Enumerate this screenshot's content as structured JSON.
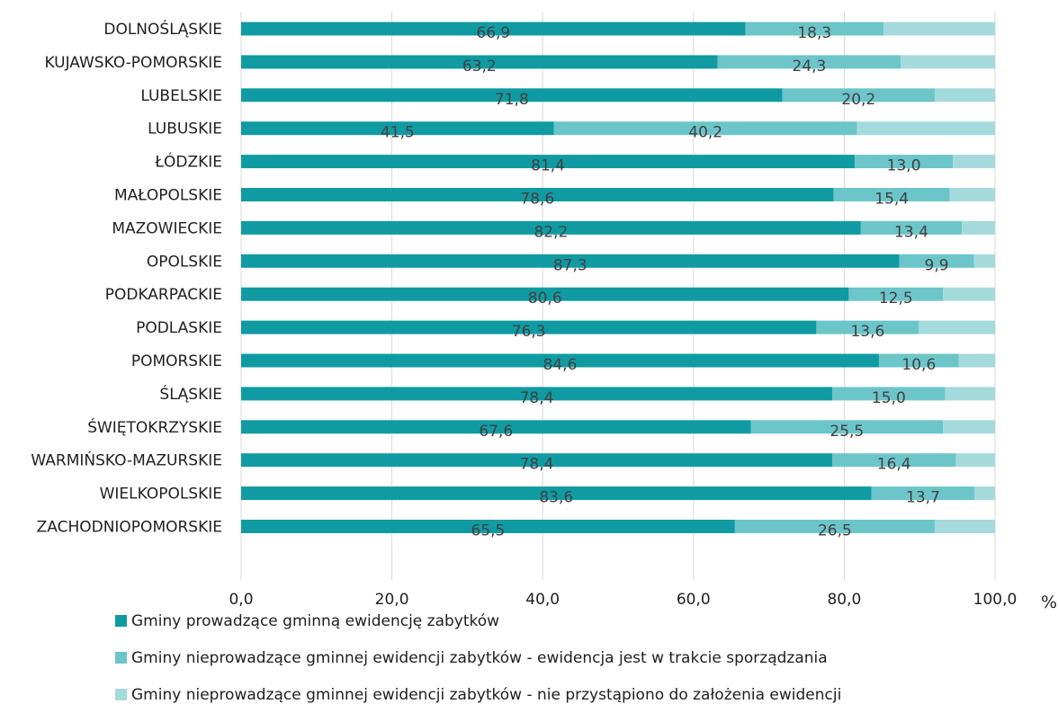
{
  "chart_data": {
    "type": "bar",
    "orientation": "horizontal",
    "stacked": true,
    "categories": [
      "DOLNOŚLĄSKIE",
      "KUJAWSKO-POMORSKIE",
      "LUBELSKIE",
      "LUBUSKIE",
      "ŁÓDZKIE",
      "MAŁOPOLSKIE",
      "MAZOWIECKIE",
      "OPOLSKIE",
      "PODKARPACKIE",
      "PODLASKIE",
      "POMORSKIE",
      "ŚLĄSKIE",
      "ŚWIĘTOKRZYSKIE",
      "WARMIŃSKO-MAZURSKIE",
      "WIELKOPOLSKIE",
      "ZACHODNIOPOMORSKIE"
    ],
    "series": [
      {
        "name": "Gminy prowadzące gminną ewidencję zabytków",
        "color": "#109ba3",
        "values": [
          66.9,
          63.2,
          71.8,
          41.5,
          81.4,
          78.6,
          82.2,
          87.3,
          80.6,
          76.3,
          84.6,
          78.4,
          67.6,
          78.4,
          83.6,
          65.5
        ],
        "labels": [
          "66,9",
          "63,2",
          "71,8",
          "41,5",
          "81,4",
          "78,6",
          "82,2",
          "87,3",
          "80,6",
          "76,3",
          "84,6",
          "78,4",
          "67,6",
          "78,4",
          "83,6",
          "65,5"
        ]
      },
      {
        "name": "Gminy nieprowadzące gminnej ewidencji zabytków -  ewidencja jest w trakcie sporządzania",
        "color": "#6cc5c9",
        "values": [
          18.3,
          24.3,
          20.2,
          40.2,
          13.0,
          15.4,
          13.4,
          9.9,
          12.5,
          13.6,
          10.6,
          15.0,
          25.5,
          16.4,
          13.7,
          26.5
        ],
        "labels": [
          "18,3",
          "24,3",
          "20,2",
          "40,2",
          "13,0",
          "15,4",
          "13,4",
          "9,9",
          "12,5",
          "13,6",
          "10,6",
          "15,0",
          "25,5",
          "16,4",
          "13,7",
          "26,5"
        ]
      },
      {
        "name": "Gminy nieprowadzące gminnej ewidencji zabytków -  nie przystąpiono do założenia ewidencji",
        "color": "#a5dadd",
        "values": [
          14.8,
          12.5,
          8.0,
          18.3,
          5.6,
          6.0,
          4.4,
          2.8,
          6.9,
          10.1,
          4.8,
          6.6,
          6.9,
          5.2,
          2.7,
          8.0
        ]
      }
    ],
    "xlim": [
      0,
      100
    ],
    "xticks": [
      "0,0",
      "20,0",
      "40,0",
      "60,0",
      "80,0",
      "100,0"
    ],
    "xtick_values": [
      0,
      20,
      40,
      60,
      80,
      100
    ],
    "unit": "%",
    "grid": true,
    "legend_position": "bottom"
  }
}
